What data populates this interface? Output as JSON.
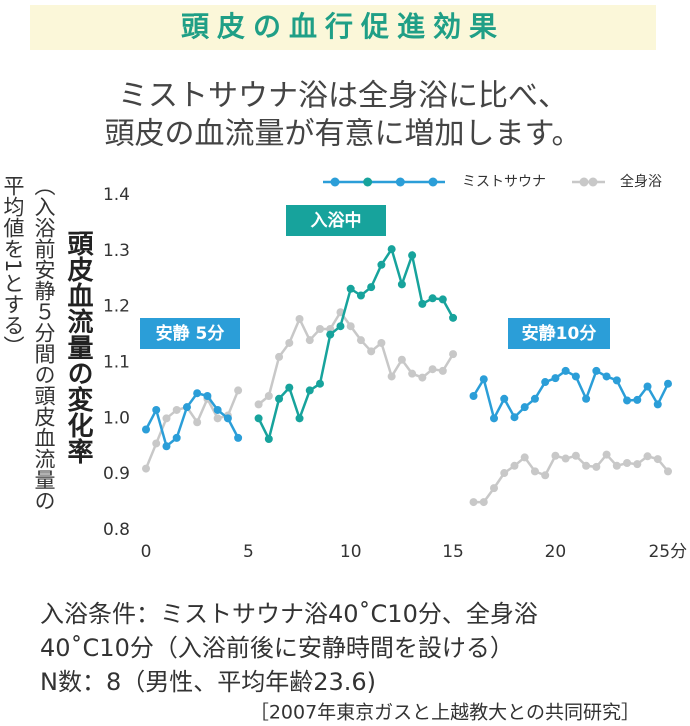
{
  "chart_data": {
    "type": "line",
    "title": "頭皮の血行促進効果",
    "subtitle": [
      "ミストサウナ浴は全身浴に比べ、",
      "頭皮の血流量が有意に増加します。"
    ],
    "y_label": "頭皮血流量の変化率",
    "y_note": [
      "（入浴前安静５分間の頭皮血流量の",
      "平均値を1とする）"
    ],
    "x": [
      0,
      0.5,
      1,
      1.5,
      2,
      2.5,
      3,
      3.5,
      4,
      4.5,
      5,
      5.5,
      6,
      6.5,
      7,
      7.5,
      8,
      8.5,
      9,
      9.5,
      10,
      10.5,
      11,
      11.5,
      12,
      12.5,
      13,
      13.5,
      14,
      14.5,
      15,
      15.5,
      16,
      16.5,
      17,
      17.5,
      18,
      18.5,
      19,
      19.5,
      20,
      20.5,
      21,
      21.5,
      22,
      22.5,
      23,
      23.5,
      24,
      24.5,
      25,
      25.5
    ],
    "series": [
      {
        "name": "ミストサウナ",
        "colors": [
          "#2b9ed8",
          "#17a39c",
          "#2b9ed8"
        ],
        "values": [
          0.98,
          1.015,
          0.95,
          0.965,
          1.02,
          1.045,
          1.04,
          1.015,
          1.0,
          0.965,
          null,
          1.0,
          0.963,
          1.035,
          1.055,
          1.0,
          1.05,
          1.062,
          1.15,
          1.165,
          1.232,
          1.22,
          1.235,
          1.275,
          1.303,
          1.24,
          1.292,
          1.205,
          1.215,
          1.213,
          1.18,
          null,
          1.04,
          1.07,
          1.0,
          1.035,
          1.002,
          1.02,
          1.035,
          1.065,
          1.072,
          1.085,
          1.075,
          1.035,
          1.085,
          1.075,
          1.068,
          1.032,
          1.033,
          1.057,
          1.025,
          1.062
        ]
      },
      {
        "name": "全身浴",
        "color": "#c8c8c8",
        "values": [
          0.91,
          0.955,
          1.0,
          1.015,
          1.02,
          0.993,
          1.035,
          1.0,
          1.005,
          1.05,
          null,
          1.025,
          1.04,
          1.11,
          1.135,
          1.178,
          1.14,
          1.16,
          1.16,
          1.19,
          1.165,
          1.14,
          1.12,
          1.135,
          1.075,
          1.105,
          1.08,
          1.073,
          1.088,
          1.085,
          1.115,
          null,
          0.85,
          0.85,
          0.875,
          0.902,
          0.915,
          0.93,
          0.905,
          0.898,
          0.933,
          0.928,
          0.933,
          0.915,
          0.913,
          0.935,
          0.915,
          0.92,
          0.918,
          0.932,
          0.927,
          0.905
        ]
      }
    ],
    "annotations": [
      {
        "text": "安静 5分",
        "color": "#2b9ed8"
      },
      {
        "text": "入浴中",
        "color": "#17a39c"
      },
      {
        "text": "安静10分",
        "color": "#2b9ed8"
      }
    ],
    "xlim": [
      0,
      25.5
    ],
    "xticks": [
      0,
      5,
      10,
      15,
      20,
      {
        "value": 25,
        "label": "25分"
      }
    ],
    "ylim": [
      0.8,
      1.4
    ],
    "yticks": [
      0.8,
      0.9,
      {
        "value": 1.0,
        "label": "1.0"
      },
      1.1,
      1.2,
      1.3,
      1.4
    ],
    "legend": "top-right",
    "footnotes": [
      "入浴条件：ミストサウナ浴40˚C10分、全身浴",
      "40˚C10分（入浴前後に安静時間を設ける）",
      "N数：8（男性、平均年齢23.6)",
      "［2007年東京ガスと上越教大との共同研究］"
    ]
  }
}
